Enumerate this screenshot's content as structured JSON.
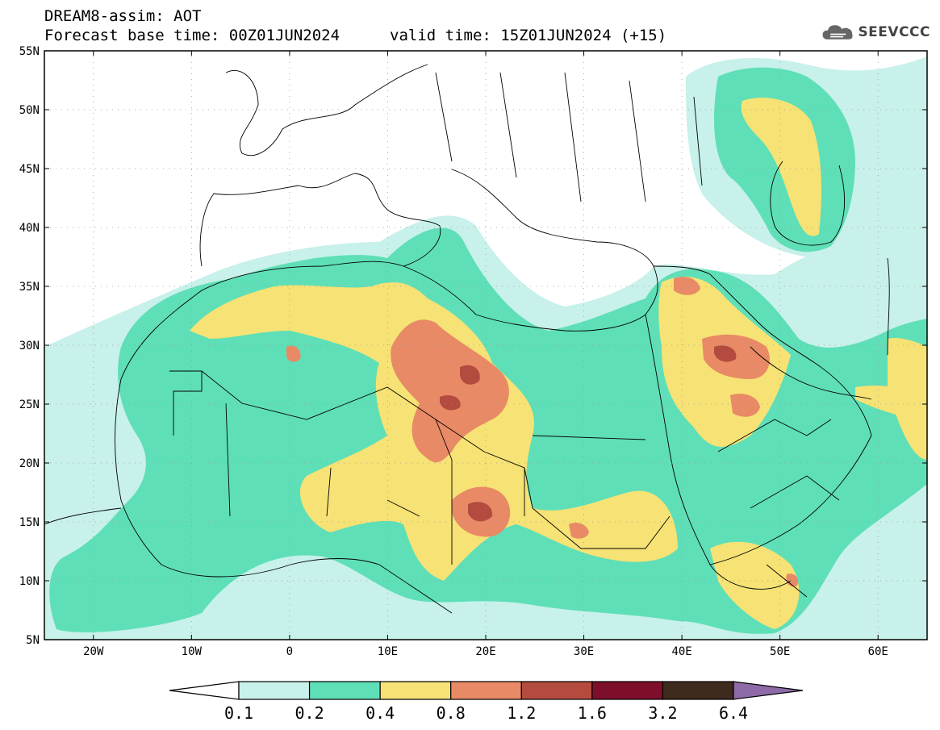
{
  "header": {
    "line1": "DREAM8-assim: AOT",
    "line2": "Forecast base time: 00Z01JUN2024",
    "valid": "valid time: 15Z01JUN2024 (+15)"
  },
  "logo": {
    "icon": "cloud-icon",
    "text": "SEEVCCC"
  },
  "map": {
    "lon_range": [
      -25,
      65
    ],
    "lat_range": [
      5,
      55
    ],
    "lat_labels": [
      "55N",
      "50N",
      "45N",
      "40N",
      "35N",
      "30N",
      "25N",
      "20N",
      "15N",
      "10N",
      "5N"
    ],
    "lon_labels": [
      "20W",
      "10W",
      "0",
      "10E",
      "20E",
      "30E",
      "40E",
      "50E",
      "60E"
    ]
  },
  "colorbar": {
    "thresholds": [
      "0.1",
      "0.2",
      "0.4",
      "0.8",
      "1.2",
      "1.6",
      "3.2",
      "6.4"
    ],
    "colors": [
      "#ffffff",
      "#c7f1ea",
      "#5fdfb7",
      "#f6e275",
      "#e98a66",
      "#b34b3f",
      "#7d0f2b",
      "#3f2a1e",
      "#8e6aa8"
    ]
  }
}
